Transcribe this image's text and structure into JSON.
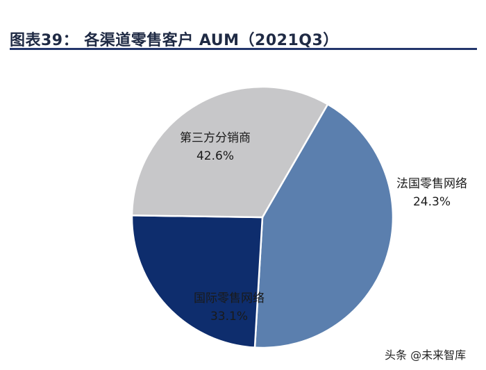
{
  "figure": {
    "title": "图表39：  各渠道零售客户 AUM（2021Q3）"
  },
  "watermark": "头条 @未来智库",
  "chart_data": {
    "type": "pie",
    "title": "图表39：  各渠道零售客户 AUM（2021Q3）",
    "slices": [
      {
        "label": "第三方分销商",
        "value": 42.6,
        "value_label": "42.6%",
        "color": "#5b7fae",
        "label_color": "#1a1a1a"
      },
      {
        "label": "法国零售网络",
        "value": 24.3,
        "value_label": "24.3%",
        "color": "#0e2d6d",
        "label_color": "#1a1a1a"
      },
      {
        "label": "国际零售网络",
        "value": 33.1,
        "value_label": "33.1%",
        "color": "#c7c7c9",
        "label_color": "#1a1a1a"
      }
    ],
    "start_angle_deg": -60,
    "direction": "clockwise",
    "unit": "%"
  }
}
